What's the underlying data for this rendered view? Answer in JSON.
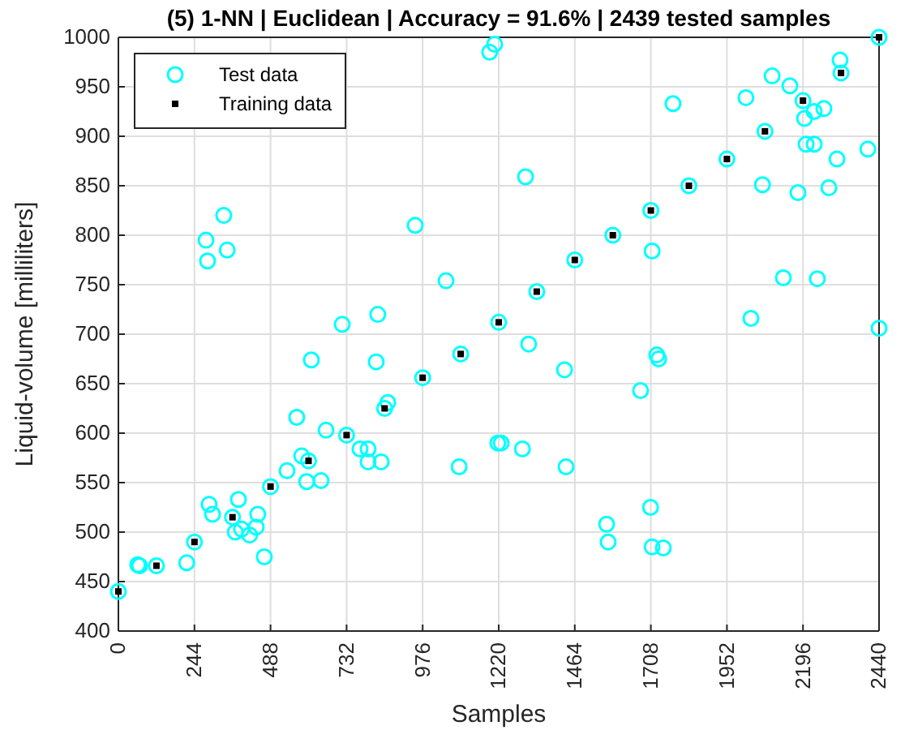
{
  "chart_data": {
    "type": "scatter",
    "title": "(5) 1-NN | Euclidean | Accuracy = 91.6% | 2439 tested samples",
    "xlabel": "Samples",
    "ylabel": "Liquid-volume [milliliters]",
    "xlim": [
      0,
      2440
    ],
    "xticks": [
      0,
      244,
      488,
      732,
      976,
      1220,
      1464,
      1708,
      1952,
      2196,
      2440
    ],
    "ylim": [
      400,
      1000
    ],
    "yticks": [
      400,
      450,
      500,
      550,
      600,
      650,
      700,
      750,
      800,
      850,
      900,
      950,
      1000
    ],
    "grid": true,
    "legend": "top left",
    "series": [
      {
        "name": "Test data",
        "color": "#00ffff",
        "marker": "circle",
        "x": [
          0,
          122,
          244,
          366,
          488,
          610,
          732,
          854,
          976,
          1098,
          1220,
          1342,
          1464,
          1586,
          1708,
          1830,
          1952,
          2074,
          2196,
          2318,
          2440,
          62,
          68,
          219,
          291,
          302,
          385,
          375,
          395,
          421,
          442,
          447,
          468,
          541,
          572,
          588,
          604,
          619,
          650,
          666,
          718,
          775,
          801,
          801,
          843,
          827,
          864,
          1093,
          1217,
          281,
          286,
          338,
          349,
          832,
          952,
          1051,
          1191,
          1207,
          1306,
          1316,
          1779,
          1712,
          1727,
          2013,
          2097,
          2154,
          2201,
          2232,
          2263,
          2206,
          2232,
          2305,
          2404,
          2066,
          2180,
          2279,
          2133,
          2242,
          2029,
          2440,
          2315,
          1431,
          1733,
          1675,
          1228,
          1296,
          1436,
          1707,
          1566,
          1571,
          1712,
          1748
        ],
        "values": [
          440,
          466,
          490,
          515,
          546,
          572,
          598,
          625,
          656,
          680,
          712,
          743,
          775,
          800,
          825,
          850,
          877,
          905,
          936,
          964,
          1000,
          467,
          466,
          469,
          528,
          518,
          533,
          500,
          503,
          497,
          505,
          518,
          475,
          562,
          616,
          577,
          551,
          674,
          552,
          603,
          710,
          584,
          584,
          571,
          571,
          672,
          631,
          566,
          590,
          795,
          774,
          820,
          785,
          720,
          810,
          754,
          985,
          993,
          859,
          690,
          933,
          784,
          679,
          939,
          961,
          951,
          918,
          925,
          928,
          892,
          892,
          877,
          887,
          851,
          843,
          848,
          757,
          756,
          716,
          706,
          977,
          664,
          675,
          643,
          590,
          584,
          566,
          525,
          508,
          490,
          485,
          484
        ]
      },
      {
        "name": "Training data",
        "color": "#000000",
        "marker": "square",
        "x": [
          0,
          122,
          244,
          366,
          488,
          610,
          732,
          854,
          976,
          1098,
          1220,
          1342,
          1464,
          1586,
          1708,
          1830,
          1952,
          2074,
          2196,
          2318,
          2440
        ],
        "values": [
          440,
          466,
          490,
          515,
          546,
          572,
          598,
          625,
          656,
          680,
          712,
          743,
          775,
          800,
          825,
          850,
          877,
          905,
          936,
          964,
          1000
        ]
      }
    ]
  }
}
